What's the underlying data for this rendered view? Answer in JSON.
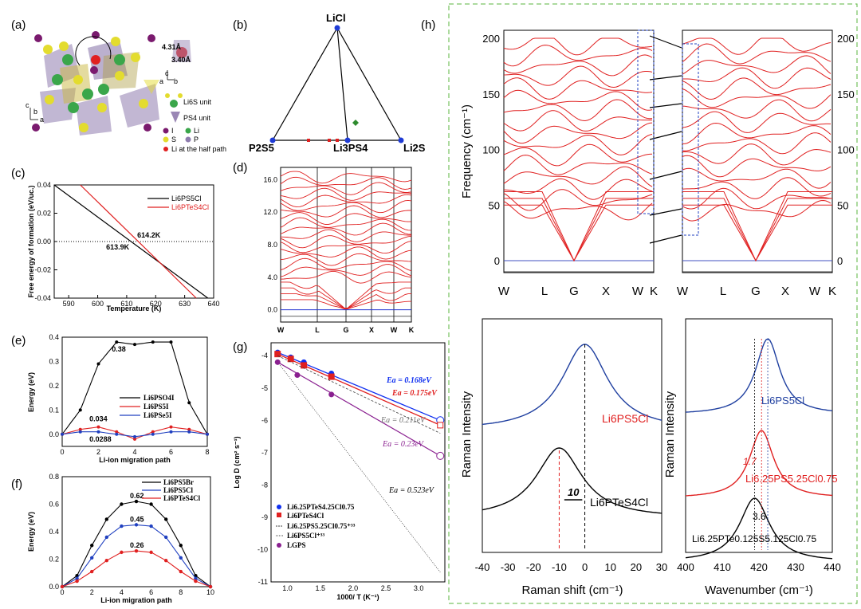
{
  "panels": {
    "a": {
      "label": "(a)",
      "dist_1": "4.31Å",
      "dist_2": "3.40Å",
      "legend": [
        "Li6S unit",
        "PS4 unit",
        "I",
        "Li",
        "S",
        "P",
        "Li at the half path"
      ],
      "axis_c": "c",
      "axis_a": "a",
      "axis_b": "b"
    },
    "b": {
      "label": "(b)",
      "vertices": [
        "LiCl",
        "P2S5",
        "Li3PS4",
        "Li2S"
      ],
      "colors": {
        "line": "#000000",
        "vertex": "#1f3bd6",
        "red": "#e02020",
        "diamond": "#2e8b2e"
      }
    },
    "c": {
      "label": "(c)",
      "chart_data": {
        "type": "line",
        "title": "",
        "xlabel": "Temperature (K)",
        "ylabel": "Free energy of formation (eV/uc.)",
        "xlim": [
          585,
          640
        ],
        "ylim": [
          -0.04,
          0.04
        ],
        "xticks": [
          "590",
          "600",
          "610",
          "620",
          "630",
          "640"
        ],
        "yticks": [
          "0.04",
          "0.02",
          "0.00",
          "-0.02",
          "-0.04"
        ],
        "series": [
          {
            "name": "Li6PS5Cl",
            "color": "#000000",
            "x": [
              585,
              638
            ],
            "y": [
              0.04,
              -0.04
            ]
          },
          {
            "name": "Li6PTeS4Cl",
            "color": "#e02020",
            "x": [
              594,
              634
            ],
            "y": [
              0.04,
              -0.04
            ]
          }
        ],
        "annotations": [
          {
            "text": "614.2K",
            "x": 614.2,
            "color": "#e02020"
          },
          {
            "text": "613.9K",
            "x": 613.9,
            "color": "#000000"
          }
        ]
      }
    },
    "d": {
      "label": "(d)",
      "chart_data": {
        "type": "line",
        "ylim": [
          -1.5,
          17.5
        ],
        "yticks": [
          "16.0",
          "12.0",
          "8.0",
          "4.0",
          "0.0"
        ],
        "xticks": [
          "W",
          "L",
          "G",
          "X",
          "W",
          "K"
        ],
        "series": [
          {
            "name": "phonon bands",
            "color": "#e02020"
          }
        ]
      }
    },
    "e": {
      "label": "(e)",
      "chart_data": {
        "type": "line",
        "xlabel": "Li-ion migration path",
        "ylabel": "Energy (eV)",
        "xlim": [
          0,
          8
        ],
        "ylim": [
          -0.05,
          0.4
        ],
        "xticks": [
          "0",
          "2",
          "4",
          "6",
          "8"
        ],
        "yticks": [
          "0.4",
          "0.3",
          "0.2",
          "0.1",
          "0.0"
        ],
        "x": [
          0,
          1,
          2,
          3,
          4,
          5,
          6,
          7,
          8
        ],
        "series": [
          {
            "name": "Li6PSO4I",
            "color": "#000000",
            "values": [
              0.0,
              0.1,
              0.29,
              0.38,
              0.37,
              0.38,
              0.38,
              0.13,
              0.0
            ]
          },
          {
            "name": "Li6PS5I",
            "color": "#e02020",
            "values": [
              0.0,
              0.02,
              0.03,
              0.01,
              -0.02,
              0.01,
              0.03,
              0.02,
              0.0
            ]
          },
          {
            "name": "Li6PSe5I",
            "color": "#2040c0",
            "values": [
              0.0,
              0.01,
              0.01,
              0.0,
              -0.01,
              0.0,
              0.01,
              0.01,
              0.0
            ]
          }
        ],
        "annotations": [
          "0.38",
          "0.034",
          "0.0288"
        ]
      }
    },
    "f": {
      "label": "(f)",
      "chart_data": {
        "type": "line",
        "xlabel": "Li-ion migration path",
        "ylabel": "Energy (eV)",
        "xlim": [
          0,
          10
        ],
        "ylim": [
          0,
          0.8
        ],
        "xticks": [
          "0",
          "2",
          "4",
          "6",
          "8",
          "10"
        ],
        "yticks": [
          "0.8",
          "0.6",
          "0.4",
          "0.2",
          "0.0"
        ],
        "x": [
          0,
          1,
          2,
          3,
          4,
          5,
          6,
          7,
          8,
          9,
          10
        ],
        "series": [
          {
            "name": "Li6PS5Br",
            "color": "#000000",
            "values": [
              0.0,
              0.08,
              0.3,
              0.49,
              0.6,
              0.62,
              0.6,
              0.49,
              0.3,
              0.08,
              0.0
            ]
          },
          {
            "name": "Li6PS5Cl",
            "color": "#2040c0",
            "values": [
              0.0,
              0.06,
              0.21,
              0.36,
              0.44,
              0.45,
              0.44,
              0.36,
              0.21,
              0.06,
              0.0
            ]
          },
          {
            "name": "Li6PTeS4Cl",
            "color": "#e02020",
            "values": [
              0.0,
              0.04,
              0.11,
              0.19,
              0.25,
              0.26,
              0.25,
              0.19,
              0.11,
              0.04,
              0.0
            ]
          }
        ],
        "annotations": [
          "0.62",
          "0.45",
          "0.26"
        ]
      }
    },
    "g": {
      "label": "(g)",
      "chart_data": {
        "type": "scatter",
        "xlabel": "1000/ T (K⁻¹)",
        "ylabel": "Log D (cm² s⁻¹)",
        "xlim": [
          0.75,
          3.4
        ],
        "ylim": [
          -11,
          -3.6
        ],
        "xticks": [
          "1.0",
          "1.5",
          "2.0",
          "2.5",
          "3.0"
        ],
        "yticks": [
          "-4",
          "-5",
          "-6",
          "-7",
          "-8",
          "-9",
          "-10",
          "-11"
        ],
        "series": [
          {
            "name": "Li6.25PTeS4.25Cl0.75",
            "color": "#1030f0",
            "x": [
              0.85,
              1.05,
              1.25,
              1.67,
              3.33
            ],
            "y": [
              -3.9,
              -4.05,
              -4.2,
              -4.55,
              -6.0
            ]
          },
          {
            "name": "Li6PTeS4Cl",
            "color": "#e02020",
            "x": [
              0.85,
              1.05,
              1.25,
              1.67,
              3.33
            ],
            "y": [
              -3.95,
              -4.1,
              -4.3,
              -4.65,
              -6.15
            ]
          },
          {
            "name": "Li6.25PS5.25Cl0.75⁺³³",
            "color": "#404040",
            "x": [
              0.85,
              3.33
            ],
            "y": [
              -4.0,
              -6.4
            ]
          },
          {
            "name": "Li6PS5Cl⁺³³",
            "color": "#404040",
            "x": [
              0.85,
              3.33
            ],
            "y": [
              -4.2,
              -10.7
            ]
          },
          {
            "name": "LGPS",
            "color": "#8a2090",
            "x": [
              0.85,
              1.15,
              1.67,
              3.33
            ],
            "y": [
              -4.2,
              -4.6,
              -5.2,
              -7.1
            ]
          }
        ],
        "annotations": [
          "Ea = 0.168eV",
          "Ea = 0.175eV",
          "Ea = 0.211eV",
          "Ea = 0.23eV",
          "Ea = 0.523eV"
        ]
      }
    },
    "h": {
      "label": "(h)",
      "band": {
        "ylabel": "Frequency (cm⁻¹)",
        "yticks": [
          "200",
          "150",
          "100",
          "50",
          "0"
        ],
        "xticks": [
          "W",
          "L",
          "G",
          "X",
          "W",
          "K"
        ]
      },
      "raman_left": {
        "chart_data": {
          "type": "line",
          "xlabel": "Raman shift (cm⁻¹)",
          "ylabel": "Raman Intensity",
          "xlim": [
            -40,
            30
          ],
          "xticks": [
            "-40",
            "-30",
            "-20",
            "-10",
            "0",
            "10",
            "20",
            "30"
          ],
          "series": [
            {
              "name": "Li6PS5Cl",
              "color": "#2040a0",
              "peak": 0
            },
            {
              "name": "Li6PTeS4Cl",
              "color": "#000000",
              "peak": -10
            }
          ],
          "annotations": [
            "10"
          ]
        },
        "label_top": "Li6PS5Cl",
        "label_bottom": "Li6PTeS4Cl"
      },
      "raman_right": {
        "chart_data": {
          "type": "line",
          "xlabel": "Wavenumber (cm⁻¹)",
          "ylabel": "Raman Intensity",
          "xlim": [
            400,
            440
          ],
          "xticks": [
            "400",
            "410",
            "420",
            "430",
            "440"
          ],
          "series": [
            {
              "name": "Li6PS5Cl",
              "color": "#2040a0",
              "peak": 422.4
            },
            {
              "name": "Li6.25PS5.25Cl0.75",
              "color": "#e02020",
              "peak": 420.7
            },
            {
              "name": "Li6.25PTe0.125S5.125Cl0.75",
              "color": "#000000",
              "peak": 418.8
            }
          ],
          "annotations": [
            "1.7",
            "3.6"
          ]
        }
      }
    }
  }
}
